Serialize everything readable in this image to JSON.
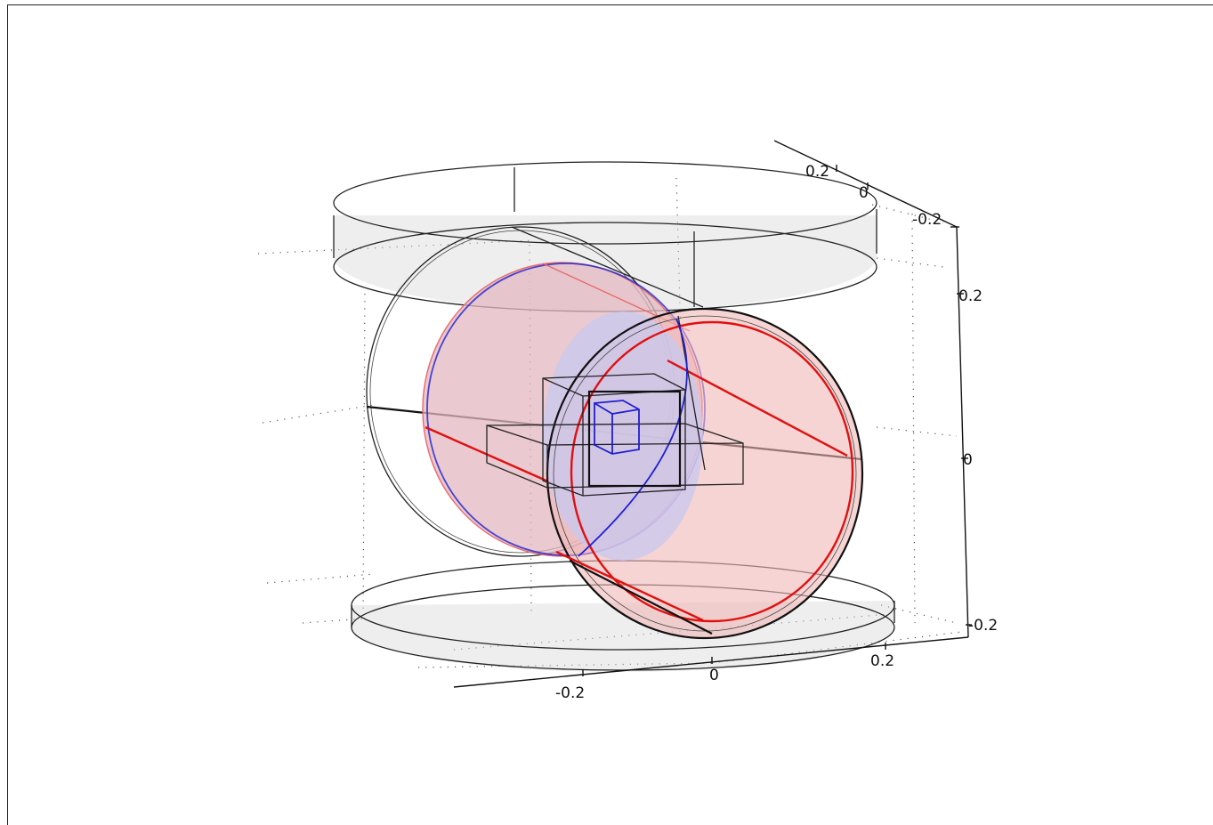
{
  "axes": {
    "x_ticks": [
      "-0.2",
      "0",
      "0.2"
    ],
    "y_ticks": [
      "-0.2",
      "0",
      "0.2"
    ],
    "z_ticks": [
      "0.2",
      "0",
      "-0.2"
    ],
    "top_left_partial": "0.2"
  },
  "colors": {
    "background": "#ffffff",
    "gray_fill": "#d9d9d9",
    "red_fill": "#f4b3b3",
    "blue_fill": "#b9b9f4",
    "red_edge": "#e01010",
    "blue_edge": "#2020d0"
  }
}
